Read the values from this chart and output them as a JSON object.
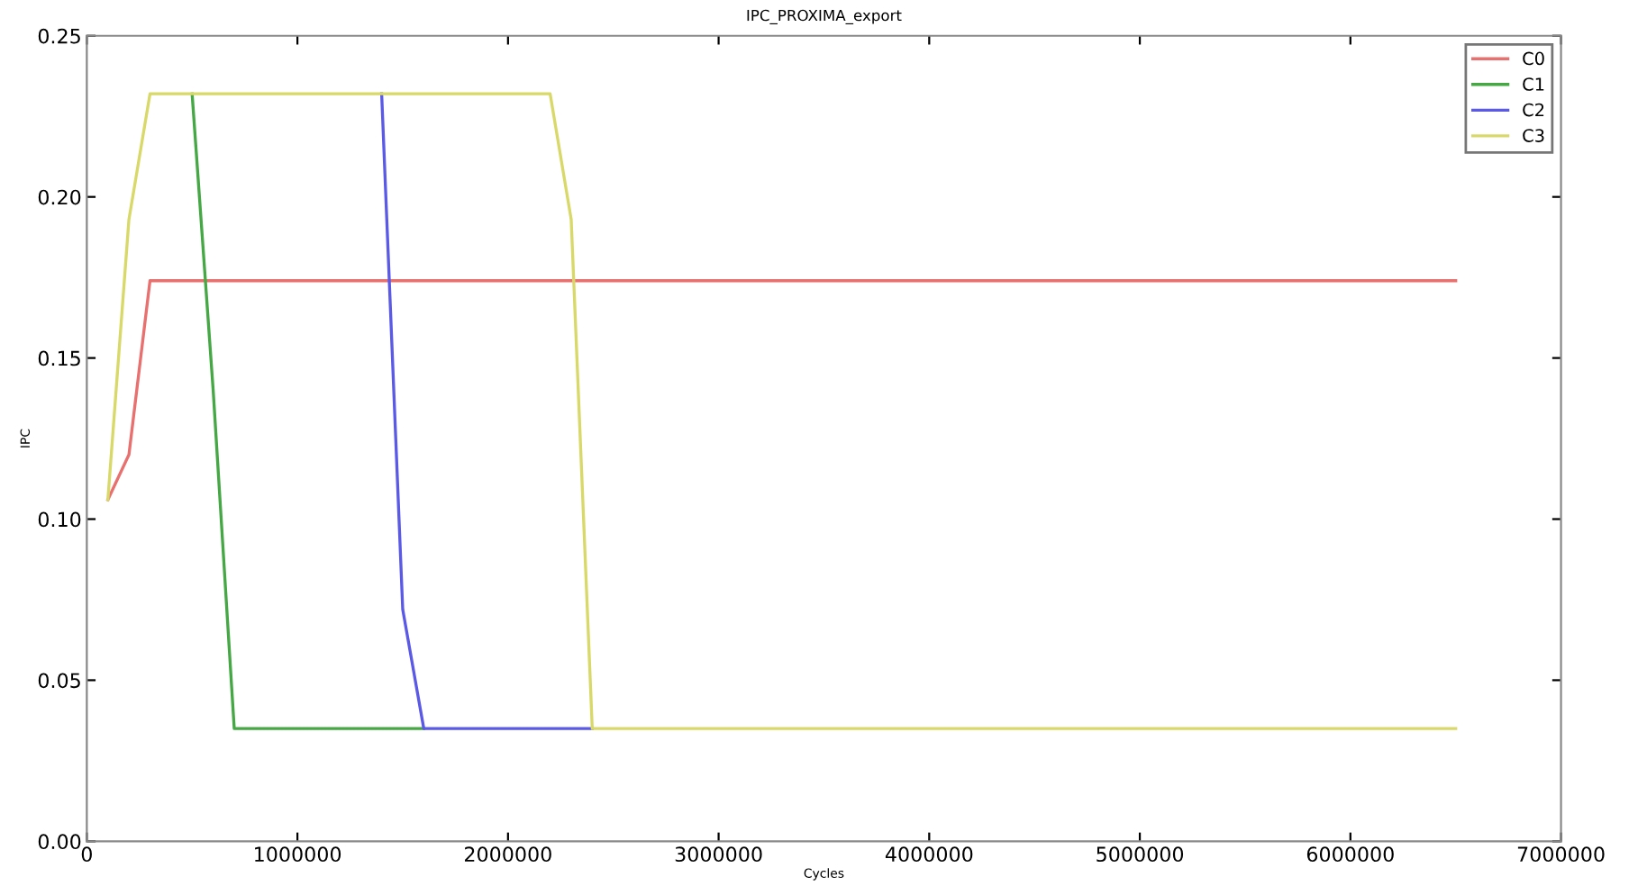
{
  "chart_data": {
    "type": "line",
    "title": "IPC_PROXIMA_export",
    "xlabel": "Cycles",
    "ylabel": "IPC",
    "series": [
      {
        "name": "C0",
        "color": "#e8706f",
        "x": [
          100000,
          200000,
          300000,
          6500000
        ],
        "values": [
          0.106,
          0.12,
          0.174,
          0.174
        ]
      },
      {
        "name": "C1",
        "color": "#45a845",
        "x": [
          500000,
          600000,
          700000,
          1600000
        ],
        "values": [
          0.232,
          0.14,
          0.035,
          0.035
        ]
      },
      {
        "name": "C2",
        "color": "#5a5ae6",
        "x": [
          1400000,
          1500000,
          1600000,
          2400000
        ],
        "values": [
          0.232,
          0.072,
          0.035,
          0.035
        ]
      },
      {
        "name": "C3",
        "color": "#d9d96a",
        "x": [
          100000,
          200000,
          300000,
          2200000,
          2300000,
          2400000,
          6500000
        ],
        "values": [
          0.106,
          0.193,
          0.232,
          0.232,
          0.193,
          0.035,
          0.035
        ]
      }
    ],
    "xlim": [
      0,
      7000000
    ],
    "xticks": [
      0,
      1000000,
      2000000,
      3000000,
      4000000,
      5000000,
      6000000,
      7000000
    ],
    "ylim": [
      0,
      0.25
    ],
    "yticks": [
      {
        "value": 0,
        "label": "0.00"
      },
      {
        "value": 0.05,
        "label": "0.05"
      },
      {
        "value": 0.1,
        "label": "0.10"
      },
      {
        "value": 0.15,
        "label": "0.15"
      },
      {
        "value": 0.2,
        "label": "0.20"
      },
      {
        "value": 0.25,
        "label": "0.25"
      }
    ],
    "grid": false,
    "legend": "top right",
    "marker": "none",
    "line_style": "solid"
  }
}
